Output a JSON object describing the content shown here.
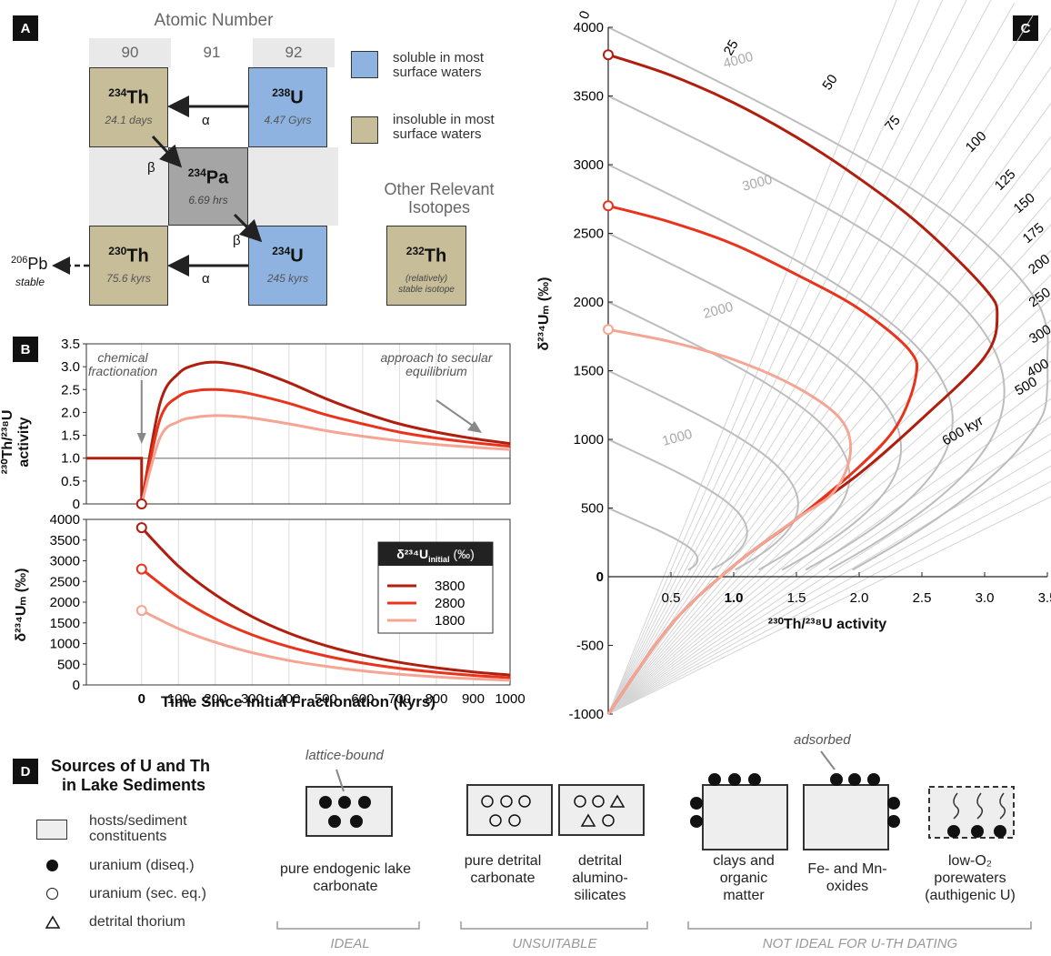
{
  "panel_labels": {
    "a": "A",
    "b": "B",
    "c": "C",
    "d": "D"
  },
  "panelA": {
    "header": "Atomic Number",
    "columns": [
      "90",
      "91",
      "92"
    ],
    "th234": {
      "mass": "234",
      "sym": "Th",
      "half": "24.1 days"
    },
    "u238": {
      "mass": "238",
      "sym": "U",
      "half": "4.47 Gyrs"
    },
    "pa234": {
      "mass": "234",
      "sym": "Pa",
      "half": "6.69 hrs"
    },
    "th230": {
      "mass": "230",
      "sym": "Th",
      "half": "75.6 kyrs"
    },
    "u234": {
      "mass": "234",
      "sym": "U",
      "half": "245 kyrs"
    },
    "pb206": {
      "mass": "206",
      "sym": "Pb",
      "note": "stable"
    },
    "alpha": "α",
    "beta": "β",
    "legend_soluble": "soluble in most surface waters",
    "legend_insoluble": "insoluble in most surface waters",
    "other_title": "Other Relevant Isotopes",
    "th232": {
      "mass": "232",
      "sym": "Th",
      "note1": "(relatively)",
      "note2": "stable isotope"
    },
    "colors": {
      "soluble": "#8eb3e0",
      "insoluble": "#c7bd98",
      "pa": "#a5a5a5"
    }
  },
  "panelB": {
    "ann_chem": "chemical fractionation",
    "ann_secular": "approach to secular equilibrium",
    "legend_title": "δ²³⁴U",
    "legend_title_sub": "initial",
    "legend_title_unit": "(‰)",
    "series_names": [
      "3800",
      "2800",
      "1800"
    ],
    "xlabel": "Time Since Initial Fractionation (kyrs)",
    "ylabel_top_1": "²³⁰Th/²³⁸U",
    "ylabel_top_2": "activity",
    "ylabel_bottom": "δ²³⁴Uₘ (‰)",
    "xticks": [
      "0",
      "100",
      "200",
      "300",
      "400",
      "500",
      "600",
      "700",
      "800",
      "900",
      "1000"
    ],
    "ytop_ticks": [
      "0",
      "0.5",
      "1.0",
      "1.5",
      "2.0",
      "2.5",
      "3.0",
      "3.5"
    ],
    "ybot_ticks": [
      "0",
      "500",
      "1000",
      "1500",
      "2000",
      "2500",
      "3000",
      "3500",
      "4000"
    ],
    "colors": [
      "#b01e0e",
      "#e8341c",
      "#f5a593"
    ]
  },
  "panelC": {
    "xlabel": "²³⁰Th/²³⁸U activity",
    "ylabel": "δ²³⁴Uₘ (‰)",
    "xticks": [
      "0.5",
      "1.0",
      "1.5",
      "2.0",
      "2.5",
      "3.0",
      "3.5"
    ],
    "yticks": [
      "-1000",
      "-500",
      "0",
      "500",
      "1000",
      "1500",
      "2000",
      "2500",
      "3000",
      "3500",
      "4000"
    ],
    "iso_labels": [
      "1000",
      "2000",
      "3000",
      "4000"
    ],
    "age_labels": [
      "0",
      "25",
      "50",
      "75",
      "100",
      "125",
      "150",
      "175",
      "200",
      "250",
      "300",
      "400",
      "500",
      "600 kyr"
    ]
  },
  "panelD": {
    "title_1": "Sources of U and Th",
    "title_2": "in Lake Sediments",
    "legend_hosts": "hosts/sediment constituents",
    "legend_u_diseq": "uranium (diseq.)",
    "legend_u_sec": "uranium (sec. eq.)",
    "legend_th": "detrital thorium",
    "lattice": "lattice-bound",
    "adsorbed": "adsorbed",
    "labels": [
      "pure endogenic lake carbonate",
      "pure detrital carbonate",
      "detrital alumino-silicates",
      "clays and organic matter",
      "Fe- and Mn-oxides",
      "low-O₂ porewaters (authigenic U)"
    ],
    "cat_ideal": "IDEAL",
    "cat_unsuitable": "UNSUITABLE",
    "cat_not_ideal": "NOT IDEAL FOR U-TH DATING"
  },
  "chart_data": [
    {
      "type": "line",
      "panel": "B-top",
      "x": [
        -150,
        0,
        50,
        100,
        150,
        200,
        250,
        300,
        400,
        500,
        600,
        700,
        800,
        900,
        1000
      ],
      "series": [
        {
          "name": "3800",
          "values": [
            1.0,
            0,
            2.2,
            2.85,
            3.05,
            3.1,
            3.05,
            2.95,
            2.65,
            2.3,
            2.0,
            1.75,
            1.57,
            1.43,
            1.32
          ]
        },
        {
          "name": "2800",
          "values": [
            1.0,
            0,
            1.85,
            2.35,
            2.48,
            2.5,
            2.47,
            2.4,
            2.2,
            1.95,
            1.75,
            1.57,
            1.44,
            1.34,
            1.26
          ]
        },
        {
          "name": "1800",
          "values": [
            1.0,
            0,
            1.45,
            1.8,
            1.9,
            1.93,
            1.92,
            1.88,
            1.75,
            1.6,
            1.48,
            1.38,
            1.3,
            1.24,
            1.19
          ]
        }
      ],
      "ylim": [
        0,
        3.5
      ],
      "xlim": [
        -150,
        1000
      ]
    },
    {
      "type": "line",
      "panel": "B-bottom",
      "x": [
        0,
        100,
        200,
        300,
        400,
        500,
        600,
        700,
        800,
        900,
        1000
      ],
      "series": [
        {
          "name": "3800",
          "values": [
            3800,
            2870,
            2180,
            1650,
            1250,
            950,
            720,
            545,
            415,
            315,
            240
          ]
        },
        {
          "name": "2800",
          "values": [
            2800,
            2120,
            1600,
            1210,
            920,
            700,
            530,
            400,
            305,
            230,
            175
          ]
        },
        {
          "name": "1800",
          "values": [
            1800,
            1360,
            1030,
            780,
            590,
            450,
            340,
            258,
            195,
            148,
            113
          ]
        }
      ],
      "ylim": [
        0,
        4000
      ],
      "xlim": [
        -150,
        1000
      ]
    },
    {
      "type": "line",
      "panel": "C",
      "series": [
        {
          "name": "3800",
          "x": [
            0,
            0.5,
            1.0,
            1.5,
            2.0,
            2.5,
            3.0,
            3.1,
            3.0,
            2.5,
            2.0,
            1.5,
            1.0,
            0.5,
            0
          ],
          "y": [
            3800,
            3650,
            3450,
            3200,
            2900,
            2550,
            2100,
            1900,
            1600,
            1150,
            750,
            420,
            80,
            -350,
            -1000
          ]
        },
        {
          "name": "2800",
          "x": [
            0,
            0.5,
            1.0,
            1.5,
            2.0,
            2.4,
            2.45,
            2.3,
            2.0,
            1.5,
            1.0,
            0.5,
            0
          ],
          "y": [
            2700,
            2580,
            2420,
            2200,
            1950,
            1650,
            1450,
            1100,
            800,
            420,
            80,
            -350,
            -1000
          ]
        },
        {
          "name": "1800",
          "x": [
            0,
            0.5,
            1.0,
            1.5,
            1.85,
            1.93,
            1.8,
            1.5,
            1.0,
            0.5,
            0
          ],
          "y": [
            1800,
            1710,
            1580,
            1380,
            1150,
            900,
            620,
            420,
            80,
            -350,
            -1000
          ]
        }
      ],
      "xlim": [
        0,
        3.5
      ],
      "ylim": [
        -1000,
        4000
      ]
    }
  ]
}
